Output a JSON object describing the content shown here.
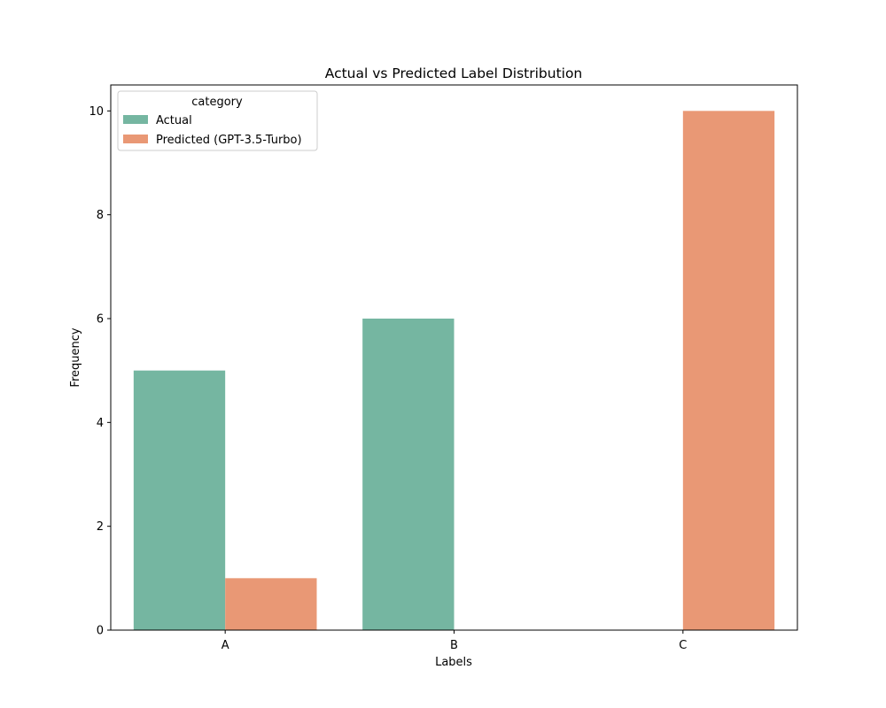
{
  "chart_data": {
    "type": "bar",
    "title": "Actual vs Predicted Label Distribution",
    "xlabel": "Labels",
    "ylabel": "Frequency",
    "categories": [
      "A",
      "B",
      "C"
    ],
    "series": [
      {
        "name": "Actual",
        "values": [
          5,
          6,
          0
        ],
        "color": "#75b6a1"
      },
      {
        "name": "Predicted (GPT-3.5-Turbo)",
        "values": [
          1,
          0,
          10
        ],
        "color": "#e99875"
      }
    ],
    "ylim": [
      0,
      10.5
    ],
    "yticks": [
      0,
      2,
      4,
      6,
      8,
      10
    ],
    "legend": {
      "title": "category",
      "placement": "top-left"
    },
    "grid": false
  }
}
